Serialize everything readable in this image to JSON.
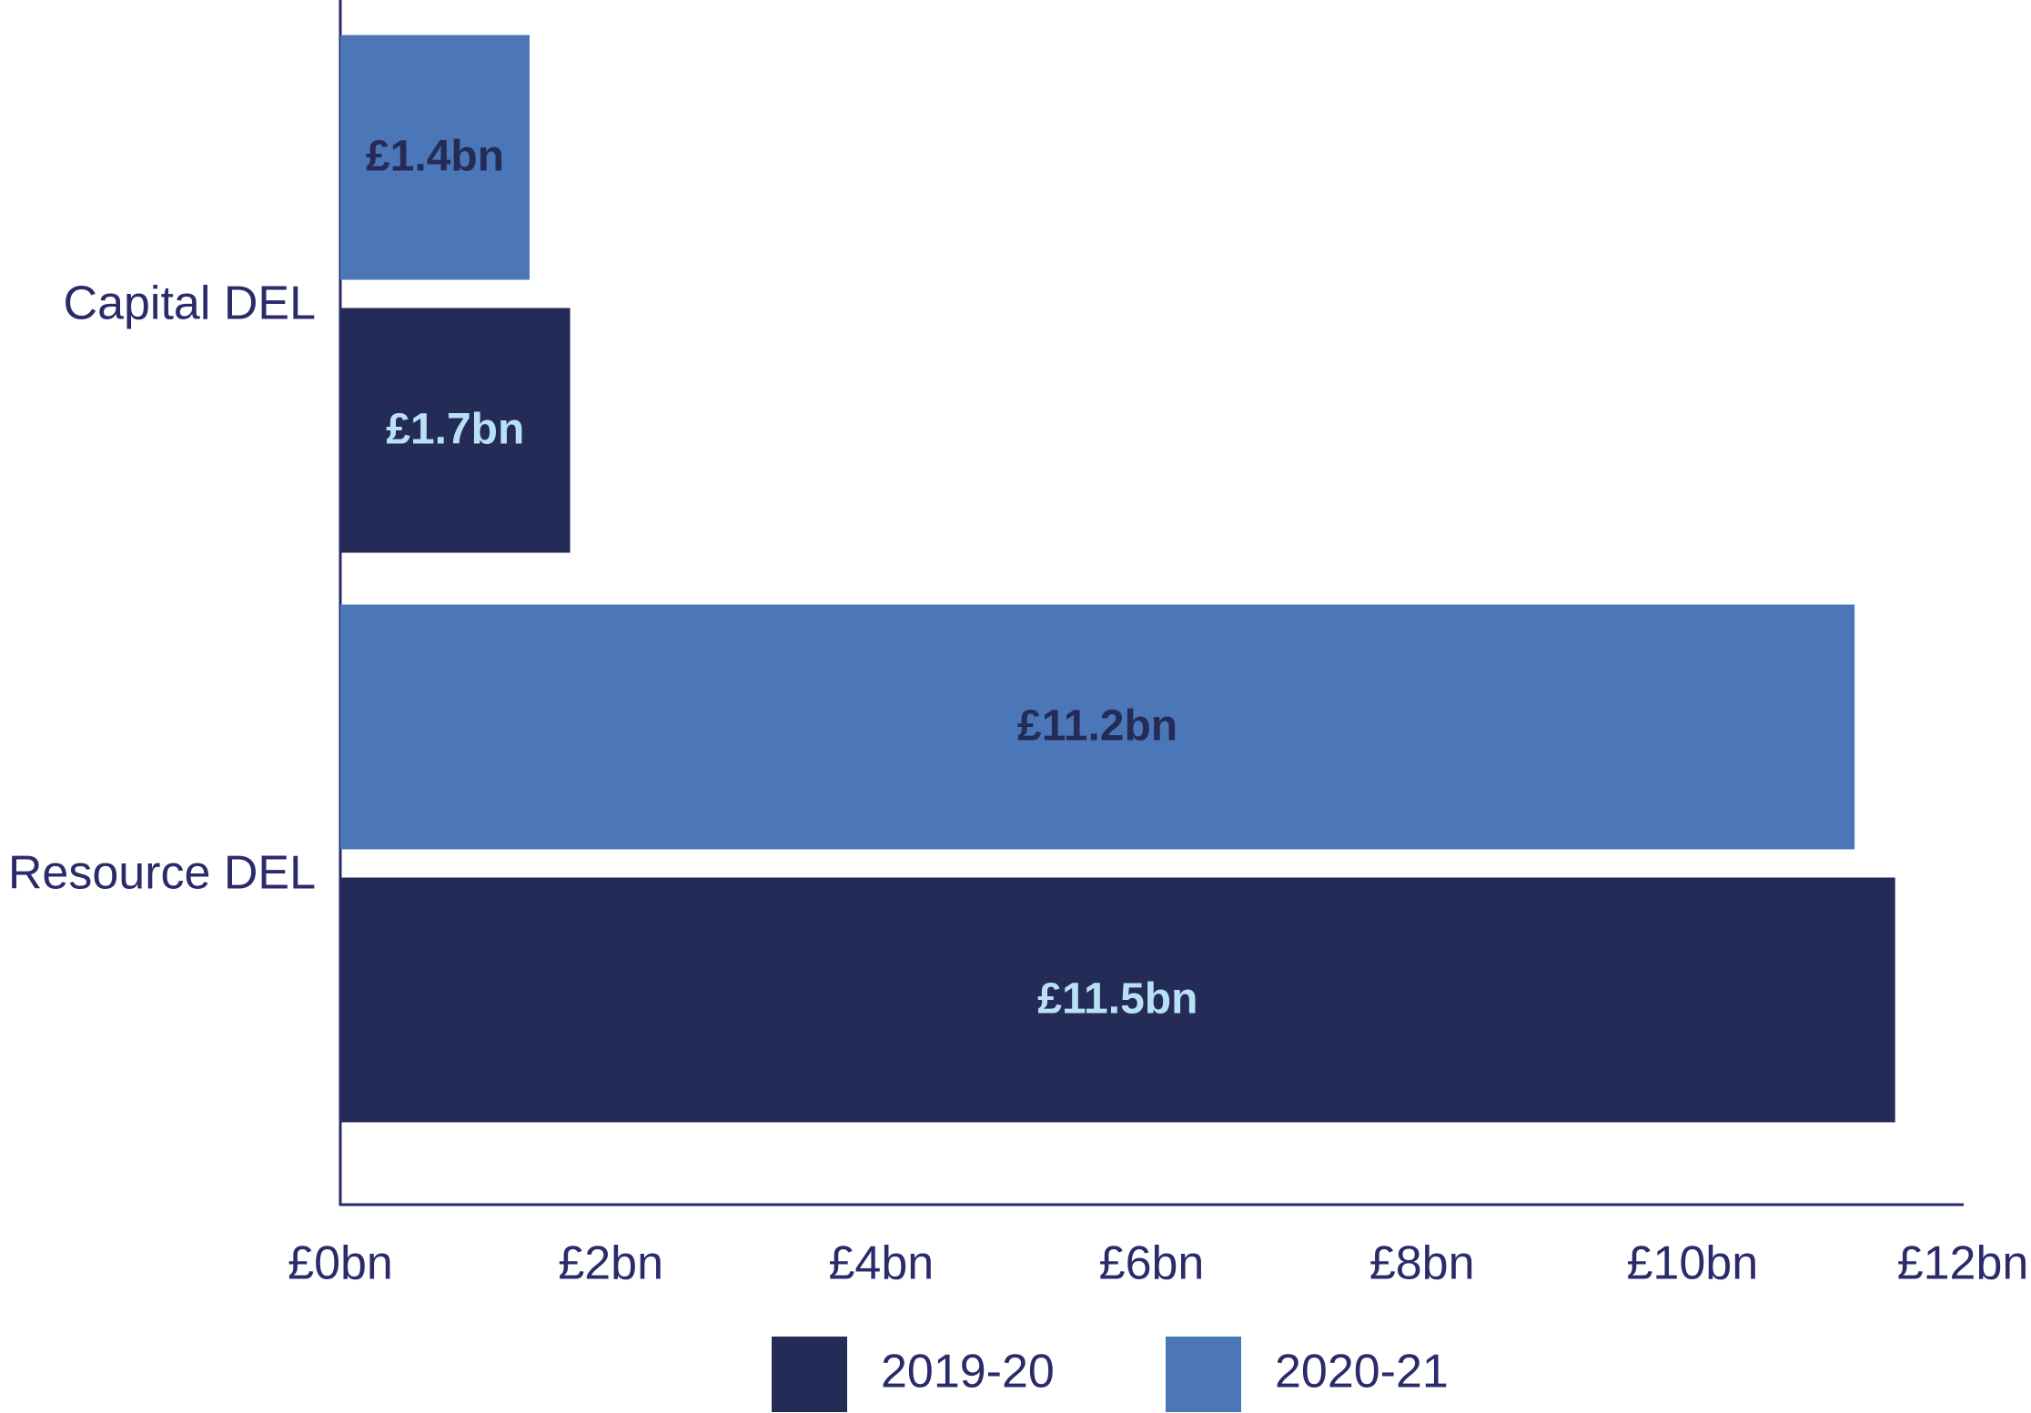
{
  "chart_data": {
    "type": "bar",
    "orientation": "horizontal",
    "categories": [
      "Capital DEL",
      "Resource DEL"
    ],
    "series": [
      {
        "name": "2019-20",
        "color": "#252b57",
        "values": [
          1.7,
          11.5
        ],
        "value_labels": [
          "£1.7bn",
          "£11.5bn"
        ]
      },
      {
        "name": "2020-21",
        "color": "#4b77b9",
        "values": [
          1.4,
          11.2
        ],
        "value_labels": [
          "£1.4bn",
          "£11.2bn"
        ]
      }
    ],
    "xlim": [
      0,
      12
    ],
    "xticks": [
      {
        "value": 0,
        "label": "£0bn"
      },
      {
        "value": 2,
        "label": "£2bn"
      },
      {
        "value": 4,
        "label": "£4bn"
      },
      {
        "value": 6,
        "label": "£6bn"
      },
      {
        "value": 8,
        "label": "£8bn"
      },
      {
        "value": 10,
        "label": "£10bn"
      },
      {
        "value": 12,
        "label": "£12bn"
      }
    ],
    "legend": "bottom"
  }
}
